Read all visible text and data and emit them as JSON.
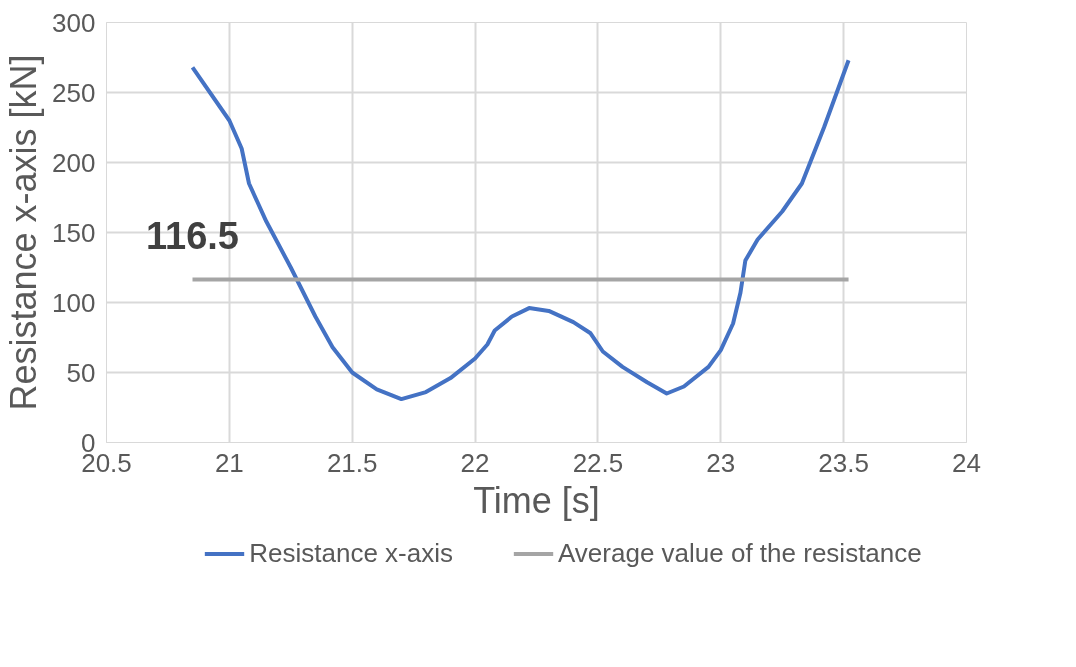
{
  "chart_data": {
    "type": "line",
    "xlabel": "Time [s]",
    "ylabel": "Resistance x-axis [kN]",
    "xlim": [
      20.5,
      24
    ],
    "ylim": [
      0,
      300
    ],
    "xticks": [
      20.5,
      21,
      21.5,
      22,
      22.5,
      23,
      23.5,
      24
    ],
    "yticks": [
      0,
      50,
      100,
      150,
      200,
      250,
      300
    ],
    "grid": true,
    "legend": "bottom",
    "marker": "none",
    "line_style": "solid",
    "series": [
      {
        "name": "Resistance x-axis",
        "color": "#4472c4",
        "x": [
          20.85,
          21.0,
          21.05,
          21.08,
          21.15,
          21.25,
          21.35,
          21.42,
          21.5,
          21.6,
          21.7,
          21.8,
          21.9,
          22.0,
          22.05,
          22.08,
          22.15,
          22.22,
          22.3,
          22.4,
          22.47,
          22.52,
          22.6,
          22.7,
          22.78,
          22.85,
          22.95,
          23.0,
          23.05,
          23.08,
          23.1,
          23.15,
          23.25,
          23.33,
          23.42,
          23.52
        ],
        "values": [
          268,
          230,
          210,
          185,
          158,
          125,
          90,
          68,
          50,
          38,
          31,
          36,
          46,
          60,
          70,
          80,
          90,
          96,
          94,
          86,
          78,
          65,
          54,
          43,
          35,
          40,
          54,
          66,
          85,
          107,
          130,
          145,
          165,
          185,
          225,
          273
        ]
      },
      {
        "name": "Average value of the resistance",
        "color": "#a5a5a5",
        "x": [
          20.85,
          23.52
        ],
        "values": [
          116.5,
          116.5
        ]
      }
    ],
    "annotations": [
      {
        "text": "116.5",
        "x": 20.85,
        "y": 116.5
      }
    ]
  }
}
